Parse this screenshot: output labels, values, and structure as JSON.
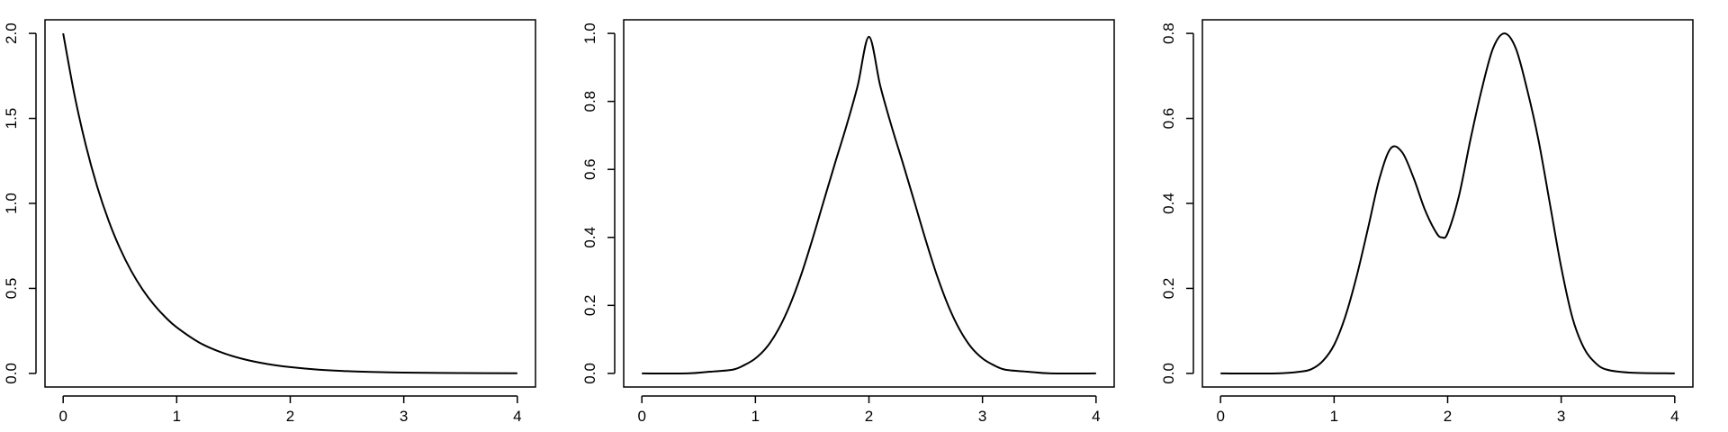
{
  "chart_data": [
    {
      "type": "line",
      "title": "",
      "xlabel": "",
      "ylabel": "",
      "xlim": [
        0,
        4
      ],
      "ylim": [
        0,
        2
      ],
      "x_ticks": [
        "0",
        "1",
        "2",
        "3",
        "4"
      ],
      "y_ticks": [
        "0.0",
        "0.5",
        "1.0",
        "1.5",
        "2.0"
      ],
      "grid": false,
      "series": [
        {
          "x": [
            0,
            0.1,
            0.2,
            0.3,
            0.4,
            0.5,
            0.6,
            0.7,
            0.8,
            0.9,
            1.0,
            1.2,
            1.4,
            1.6,
            1.8,
            2.0,
            2.25,
            2.5,
            2.75,
            3.0,
            3.5,
            4.0
          ],
          "y": [
            2.0,
            1.637,
            1.341,
            1.098,
            0.899,
            0.736,
            0.602,
            0.493,
            0.404,
            0.331,
            0.271,
            0.181,
            0.122,
            0.082,
            0.055,
            0.037,
            0.022,
            0.013,
            0.008,
            0.005,
            0.002,
            0.001
          ]
        }
      ]
    },
    {
      "type": "line",
      "title": "",
      "xlabel": "",
      "ylabel": "",
      "xlim": [
        0,
        4
      ],
      "ylim": [
        0,
        1
      ],
      "x_ticks": [
        "0",
        "1",
        "2",
        "3",
        "4"
      ],
      "y_ticks": [
        "0.0",
        "0.2",
        "0.4",
        "0.6",
        "0.8",
        "1.0"
      ],
      "grid": false,
      "series": [
        {
          "x": [
            0,
            0.4,
            0.6,
            0.8,
            0.9,
            1.0,
            1.1,
            1.2,
            1.3,
            1.4,
            1.5,
            1.6,
            1.7,
            1.8,
            1.9,
            2.0,
            2.1,
            2.2,
            2.3,
            2.4,
            2.5,
            2.6,
            2.7,
            2.8,
            2.9,
            3.0,
            3.1,
            3.2,
            3.4,
            3.6,
            4.0
          ],
          "y": [
            0.0,
            0.0,
            0.005,
            0.011,
            0.024,
            0.044,
            0.077,
            0.128,
            0.198,
            0.287,
            0.392,
            0.505,
            0.617,
            0.726,
            0.845,
            0.99,
            0.845,
            0.726,
            0.617,
            0.505,
            0.392,
            0.287,
            0.198,
            0.128,
            0.077,
            0.044,
            0.024,
            0.011,
            0.005,
            0.0,
            0.0
          ]
        }
      ]
    },
    {
      "type": "line",
      "title": "",
      "xlabel": "",
      "ylabel": "",
      "xlim": [
        0,
        4
      ],
      "ylim": [
        0,
        0.8
      ],
      "x_ticks": [
        "0",
        "1",
        "2",
        "3",
        "4"
      ],
      "y_ticks": [
        "0.0",
        "0.2",
        "0.4",
        "0.6",
        "0.8"
      ],
      "grid": false,
      "series": [
        {
          "x": [
            0,
            0.5,
            0.7,
            0.8,
            0.9,
            1.0,
            1.1,
            1.2,
            1.3,
            1.4,
            1.5,
            1.6,
            1.7,
            1.8,
            1.9,
            1.95,
            2.0,
            2.1,
            2.2,
            2.3,
            2.4,
            2.5,
            2.6,
            2.7,
            2.8,
            2.9,
            3.0,
            3.1,
            3.2,
            3.3,
            3.4,
            3.6,
            4.0
          ],
          "y": [
            0.0,
            0.0,
            0.004,
            0.01,
            0.029,
            0.067,
            0.135,
            0.23,
            0.343,
            0.459,
            0.53,
            0.52,
            0.46,
            0.385,
            0.331,
            0.32,
            0.33,
            0.418,
            0.549,
            0.668,
            0.765,
            0.8,
            0.765,
            0.668,
            0.549,
            0.4,
            0.25,
            0.13,
            0.06,
            0.025,
            0.009,
            0.002,
            0.0
          ]
        }
      ]
    }
  ]
}
